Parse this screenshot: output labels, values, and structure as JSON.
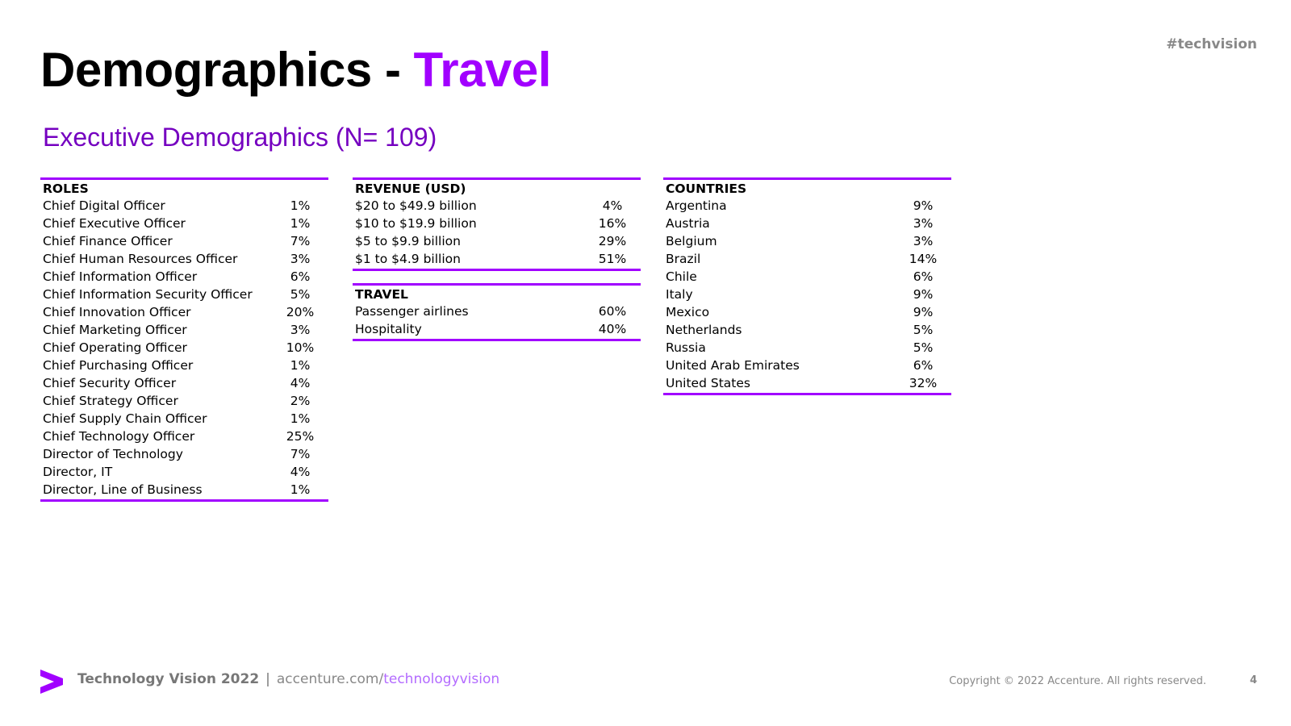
{
  "header": {
    "title": "Demographics -",
    "title_highlight": "Travel",
    "tag": "#techvision"
  },
  "subtitle": "Executive Demographics (N= 109)",
  "tables": [
    {
      "heading": "ROLES",
      "rows": [
        [
          "Chief Digital Officer",
          "1%"
        ],
        [
          "Chief Executive Officer",
          "1%"
        ],
        [
          "Chief Finance Officer",
          "7%"
        ],
        [
          "Chief Human Resources Officer",
          "3%"
        ],
        [
          "Chief Information Officer",
          "6%"
        ],
        [
          "Chief Information Security Officer",
          "5%"
        ],
        [
          "Chief Innovation Officer",
          "20%"
        ],
        [
          "Chief Marketing Officer",
          "3%"
        ],
        [
          "Chief Operating Officer",
          "10%"
        ],
        [
          "Chief Purchasing Officer",
          "1%"
        ],
        [
          "Chief Security Officer",
          "4%"
        ],
        [
          "Chief Strategy Officer",
          "2%"
        ],
        [
          "Chief Supply Chain Officer",
          "1%"
        ],
        [
          "Chief Technology Officer",
          "25%"
        ],
        [
          "Director of Technology",
          "7%"
        ],
        [
          "Director, IT",
          "4%"
        ],
        [
          "Director, Line of Business",
          "1%"
        ]
      ]
    },
    {
      "heading": "REVENUE (USD)",
      "rows": [
        [
          "$20 to $49.9 billion",
          "4%"
        ],
        [
          "$10 to $19.9 billion",
          "16%"
        ],
        [
          "$5 to $9.9 billion",
          "29%"
        ],
        [
          "$1 to $4.9 billion",
          "51%"
        ]
      ]
    },
    {
      "heading": "TRAVEL",
      "rows": [
        [
          "Passenger airlines",
          "60%"
        ],
        [
          "Hospitality",
          "40%"
        ]
      ]
    },
    {
      "heading": "COUNTRIES",
      "rows": [
        [
          "Argentina",
          "9%"
        ],
        [
          "Austria",
          "3%"
        ],
        [
          "Belgium",
          "3%"
        ],
        [
          "Brazil",
          "14%"
        ],
        [
          "Chile",
          "6%"
        ],
        [
          "Italy",
          "9%"
        ],
        [
          "Mexico",
          "9%"
        ],
        [
          "Netherlands",
          "5%"
        ],
        [
          "Russia",
          "5%"
        ],
        [
          "United Arab Emirates",
          "6%"
        ],
        [
          "United States",
          "32%"
        ]
      ]
    }
  ],
  "footer": {
    "brand": "Technology Vision 2022",
    "separator": "|",
    "url_base": "accenture.com/",
    "url_path": "technologyvision",
    "copyright": "Copyright © 2022 Accenture. All rights reserved.",
    "page": "4"
  }
}
